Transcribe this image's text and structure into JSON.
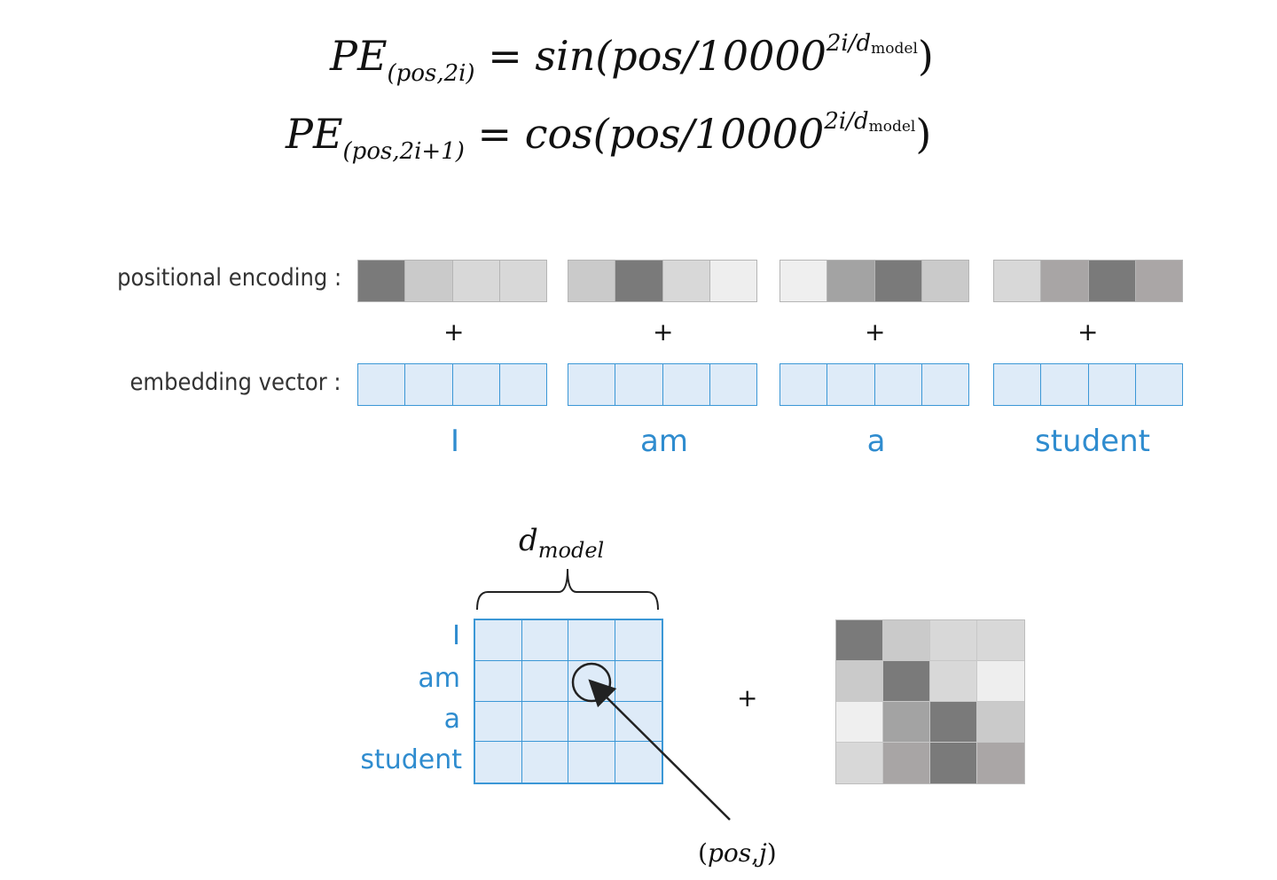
{
  "formulas": {
    "f1": {
      "lhs": "PE",
      "sub": "(pos,2i)",
      "eq": "=",
      "func": "sin",
      "arg": "(pos/10000",
      "exp": "2i/d",
      "exp_sub": "model",
      "close": ")"
    },
    "f2": {
      "lhs": "PE",
      "sub": "(pos,2i+1)",
      "eq": "=",
      "func": "cos",
      "arg": "(pos/10000",
      "exp": "2i/d",
      "exp_sub": "model",
      "close": ")"
    }
  },
  "labels": {
    "positional_encoding": "positional encoding :",
    "embedding_vector": "embedding vector :",
    "plus": "+"
  },
  "words": [
    "I",
    "am",
    "a",
    "student"
  ],
  "colors": {
    "embedding_fill": "#deebf8",
    "embedding_border": "#3b97d6",
    "word_text": "#2f8ccf"
  },
  "positional_encoding_shades": [
    [
      "#7a7a7a",
      "#cacaca",
      "#d8d8d8",
      "#d8d8d8"
    ],
    [
      "#cacaca",
      "#7a7a7a",
      "#d8d8d8",
      "#eeeeee"
    ],
    [
      "#efefef",
      "#a3a3a3",
      "#7a7a7a",
      "#cacaca"
    ],
    [
      "#d8d8d8",
      "#a8a5a5",
      "#7a7a7a",
      "#aaa6a6"
    ]
  ],
  "matrix_diagram": {
    "dmodel_label": "d",
    "dmodel_sub": "model",
    "plus": "+",
    "pos_label_open": "(",
    "pos_label_pos": "pos",
    "pos_label_comma": ",",
    "pos_label_j": "j",
    "pos_label_close": ")"
  }
}
